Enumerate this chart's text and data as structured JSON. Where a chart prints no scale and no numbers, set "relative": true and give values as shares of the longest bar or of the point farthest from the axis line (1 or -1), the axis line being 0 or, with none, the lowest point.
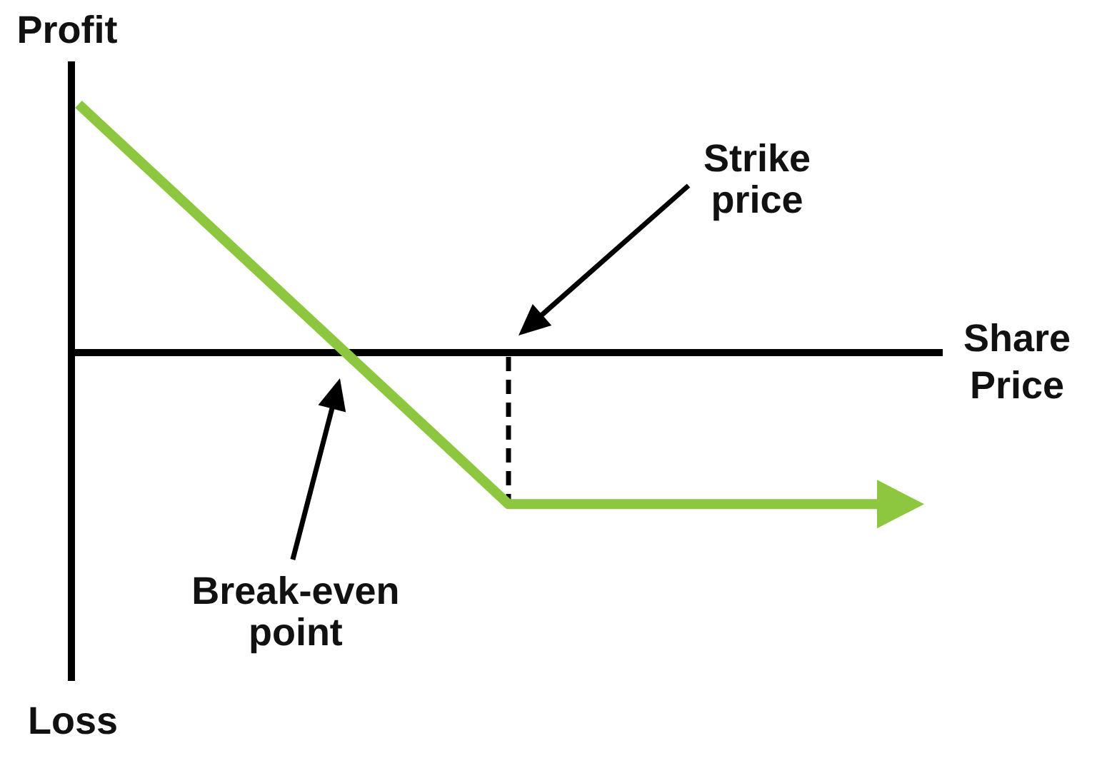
{
  "chart_data": {
    "type": "line",
    "xlabel": "Share Price",
    "ylabel": "Profit",
    "annotations": [
      "Strike price",
      "Break-even point",
      "Loss"
    ],
    "relative": true,
    "categories": [
      null,
      null,
      null,
      null,
      null,
      null,
      null,
      null,
      null,
      null,
      null,
      null,
      null,
      null
    ],
    "values": [
      1,
      0.77,
      0.54,
      0.31,
      0.08,
      -0.15,
      -0.38,
      -0.61,
      -0.61,
      -0.61,
      -0.61,
      -0.61,
      -0.61,
      -0.61
    ],
    "color": "#8dc63f"
  }
}
